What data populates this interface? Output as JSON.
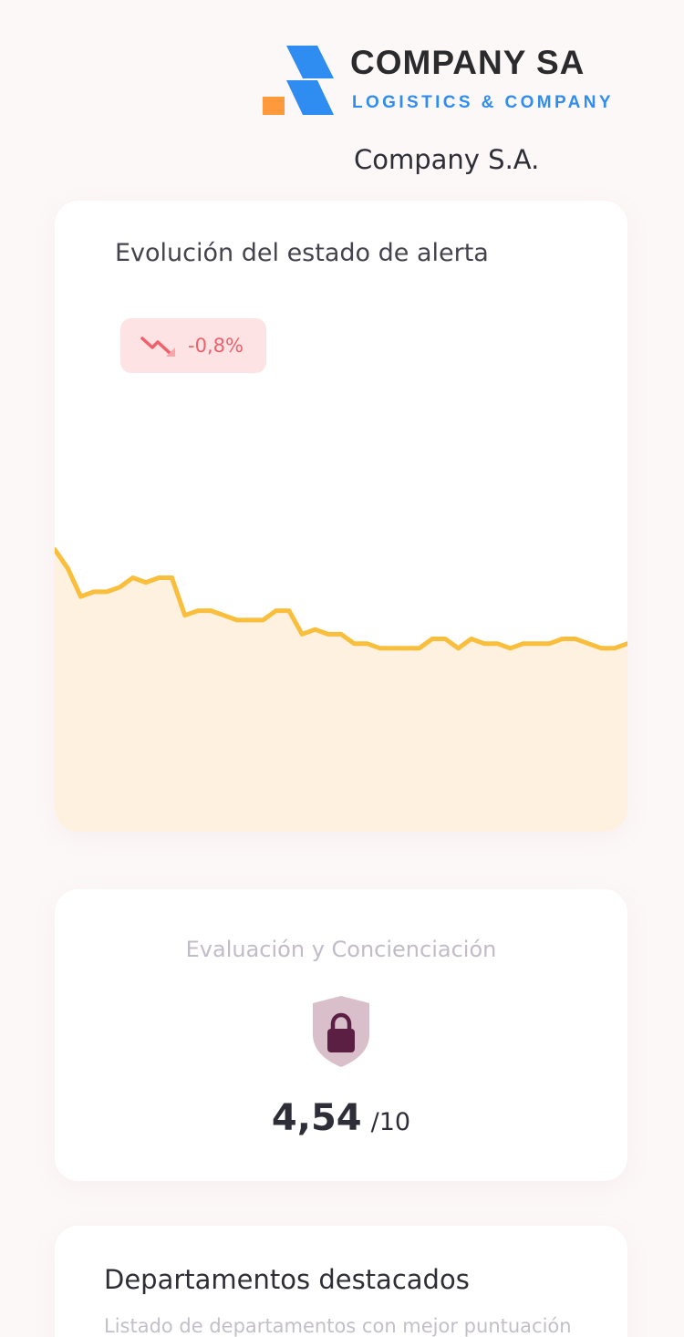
{
  "header": {
    "logo_title": "COMPANY SA",
    "logo_subtitle": "LOGISTICS & COMPANY",
    "company_name": "Company S.A."
  },
  "alert_card": {
    "title": "Evolución del estado de alerta",
    "trend_icon": "trend-down-icon",
    "change": "-0,8%"
  },
  "chart_data": {
    "type": "area",
    "values": [
      10.0,
      9.8,
      9.5,
      9.55,
      9.55,
      9.6,
      9.7,
      9.65,
      9.7,
      9.7,
      9.3,
      9.35,
      9.35,
      9.3,
      9.25,
      9.25,
      9.25,
      9.35,
      9.35,
      9.1,
      9.15,
      9.1,
      9.1,
      9.0,
      9.0,
      8.95,
      8.95,
      8.95,
      8.95,
      9.05,
      9.05,
      8.95,
      9.05,
      9.0,
      9.0,
      8.95,
      9.0,
      9.0,
      9.0,
      9.05,
      9.05,
      9.0,
      8.95,
      8.95,
      9.0
    ],
    "line_color": "#f9be3c",
    "fill_color": "#fff1df",
    "ylim": [
      7.0,
      10.8
    ]
  },
  "score_card": {
    "title": "Evaluación y Concienciación",
    "icon": "shield-lock-icon",
    "score": "4,54",
    "max": "/10"
  },
  "departments_card": {
    "title": "Departamentos destacados",
    "subtitle": "Listado de departamentos con mejor puntuación"
  },
  "colors": {
    "logo_blue": "#2f8cf0",
    "logo_orange": "#ff9a3c",
    "alert_red": "#f0606a",
    "shield_fill": "#d9bfc9",
    "lock_fill": "#5a1f42"
  }
}
